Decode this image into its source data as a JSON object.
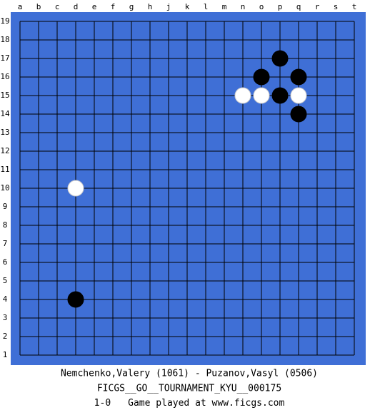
{
  "board": {
    "columns": [
      "a",
      "b",
      "c",
      "d",
      "e",
      "f",
      "g",
      "h",
      "j",
      "k",
      "l",
      "m",
      "n",
      "o",
      "p",
      "q",
      "r",
      "s",
      "t"
    ],
    "rows": [
      19,
      18,
      17,
      16,
      15,
      14,
      13,
      12,
      11,
      10,
      9,
      8,
      7,
      6,
      5,
      4,
      3,
      2,
      1
    ],
    "stones": [
      {
        "col": "p",
        "row": 17,
        "color": "black"
      },
      {
        "col": "o",
        "row": 16,
        "color": "black"
      },
      {
        "col": "q",
        "row": 16,
        "color": "black"
      },
      {
        "col": "n",
        "row": 15,
        "color": "white"
      },
      {
        "col": "o",
        "row": 15,
        "color": "white"
      },
      {
        "col": "p",
        "row": 15,
        "color": "black"
      },
      {
        "col": "q",
        "row": 15,
        "color": "white"
      },
      {
        "col": "q",
        "row": 14,
        "color": "black"
      },
      {
        "col": "d",
        "row": 10,
        "color": "white"
      },
      {
        "col": "d",
        "row": 4,
        "color": "black"
      }
    ]
  },
  "footer": {
    "players": "Nemchenko,Valery (1061) - Puzanov,Vasyl (0506)",
    "event": "FICGS__GO__TOURNAMENT_KYU__000175",
    "result": "1-0",
    "note": "Game played at www.ficgs.com"
  }
}
